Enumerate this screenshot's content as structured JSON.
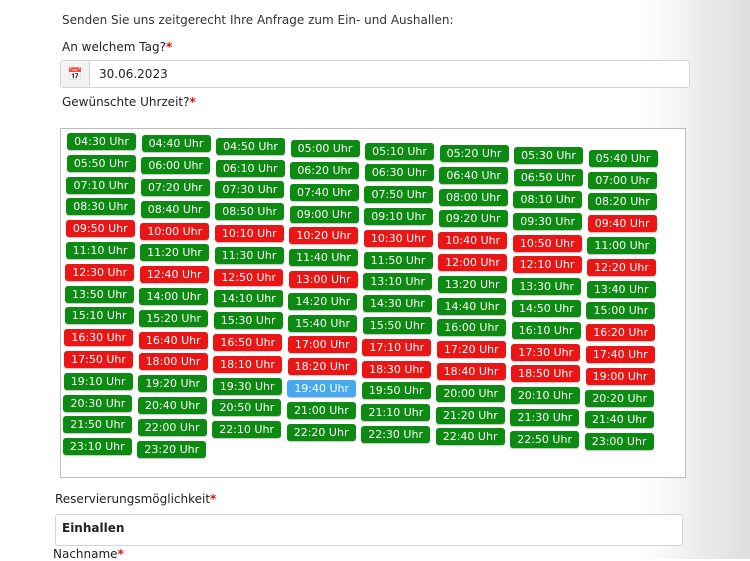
{
  "intro": "Senden Sie uns zeitgerecht Ihre Anfrage zum Ein- und Aushallen:",
  "day": {
    "label": "An welchem Tag?",
    "required": "*",
    "value": "30.06.2023"
  },
  "time": {
    "label": "Gewünschte Uhrzeit?",
    "required": "*"
  },
  "slots": [
    {
      "t": "04:30 Uhr",
      "s": "available"
    },
    {
      "t": "04:40 Uhr",
      "s": "available"
    },
    {
      "t": "04:50 Uhr",
      "s": "available"
    },
    {
      "t": "05:00 Uhr",
      "s": "available"
    },
    {
      "t": "05:10 Uhr",
      "s": "available"
    },
    {
      "t": "05:20 Uhr",
      "s": "available"
    },
    {
      "t": "05:30 Uhr",
      "s": "available"
    },
    {
      "t": "05:40 Uhr",
      "s": "available"
    },
    {
      "t": "05:50 Uhr",
      "s": "available"
    },
    {
      "t": "06:00 Uhr",
      "s": "available"
    },
    {
      "t": "06:10 Uhr",
      "s": "available"
    },
    {
      "t": "06:20 Uhr",
      "s": "available"
    },
    {
      "t": "06:30 Uhr",
      "s": "available"
    },
    {
      "t": "06:40 Uhr",
      "s": "available"
    },
    {
      "t": "06:50 Uhr",
      "s": "available"
    },
    {
      "t": "07:00 Uhr",
      "s": "available"
    },
    {
      "t": "07:10 Uhr",
      "s": "available"
    },
    {
      "t": "07:20 Uhr",
      "s": "available"
    },
    {
      "t": "07:30 Uhr",
      "s": "available"
    },
    {
      "t": "07:40 Uhr",
      "s": "available"
    },
    {
      "t": "07:50 Uhr",
      "s": "available"
    },
    {
      "t": "08:00 Uhr",
      "s": "available"
    },
    {
      "t": "08:10 Uhr",
      "s": "available"
    },
    {
      "t": "08:20 Uhr",
      "s": "available"
    },
    {
      "t": "08:30 Uhr",
      "s": "available"
    },
    {
      "t": "08:40 Uhr",
      "s": "available"
    },
    {
      "t": "08:50 Uhr",
      "s": "available"
    },
    {
      "t": "09:00 Uhr",
      "s": "available"
    },
    {
      "t": "09:10 Uhr",
      "s": "available"
    },
    {
      "t": "09:20 Uhr",
      "s": "available"
    },
    {
      "t": "09:30 Uhr",
      "s": "available"
    },
    {
      "t": "09:40 Uhr",
      "s": "booked"
    },
    {
      "t": "09:50 Uhr",
      "s": "booked"
    },
    {
      "t": "10:00 Uhr",
      "s": "booked"
    },
    {
      "t": "10:10 Uhr",
      "s": "booked"
    },
    {
      "t": "10:20 Uhr",
      "s": "booked"
    },
    {
      "t": "10:30 Uhr",
      "s": "booked"
    },
    {
      "t": "10:40 Uhr",
      "s": "booked"
    },
    {
      "t": "10:50 Uhr",
      "s": "booked"
    },
    {
      "t": "11:00 Uhr",
      "s": "available"
    },
    {
      "t": "11:10 Uhr",
      "s": "available"
    },
    {
      "t": "11:20 Uhr",
      "s": "available"
    },
    {
      "t": "11:30 Uhr",
      "s": "available"
    },
    {
      "t": "11:40 Uhr",
      "s": "available"
    },
    {
      "t": "11:50 Uhr",
      "s": "available"
    },
    {
      "t": "12:00 Uhr",
      "s": "booked"
    },
    {
      "t": "12:10 Uhr",
      "s": "booked"
    },
    {
      "t": "12:20 Uhr",
      "s": "booked"
    },
    {
      "t": "12:30 Uhr",
      "s": "booked"
    },
    {
      "t": "12:40 Uhr",
      "s": "booked"
    },
    {
      "t": "12:50 Uhr",
      "s": "booked"
    },
    {
      "t": "13:00 Uhr",
      "s": "booked"
    },
    {
      "t": "13:10 Uhr",
      "s": "available"
    },
    {
      "t": "13:20 Uhr",
      "s": "available"
    },
    {
      "t": "13:30 Uhr",
      "s": "available"
    },
    {
      "t": "13:40 Uhr",
      "s": "available"
    },
    {
      "t": "13:50 Uhr",
      "s": "available"
    },
    {
      "t": "14:00 Uhr",
      "s": "available"
    },
    {
      "t": "14:10 Uhr",
      "s": "available"
    },
    {
      "t": "14:20 Uhr",
      "s": "available"
    },
    {
      "t": "14:30 Uhr",
      "s": "available"
    },
    {
      "t": "14:40 Uhr",
      "s": "available"
    },
    {
      "t": "14:50 Uhr",
      "s": "available"
    },
    {
      "t": "15:00 Uhr",
      "s": "available"
    },
    {
      "t": "15:10 Uhr",
      "s": "available"
    },
    {
      "t": "15:20 Uhr",
      "s": "available"
    },
    {
      "t": "15:30 Uhr",
      "s": "available"
    },
    {
      "t": "15:40 Uhr",
      "s": "available"
    },
    {
      "t": "15:50 Uhr",
      "s": "available"
    },
    {
      "t": "16:00 Uhr",
      "s": "available"
    },
    {
      "t": "16:10 Uhr",
      "s": "available"
    },
    {
      "t": "16:20 Uhr",
      "s": "booked"
    },
    {
      "t": "16:30 Uhr",
      "s": "booked"
    },
    {
      "t": "16:40 Uhr",
      "s": "booked"
    },
    {
      "t": "16:50 Uhr",
      "s": "booked"
    },
    {
      "t": "17:00 Uhr",
      "s": "booked"
    },
    {
      "t": "17:10 Uhr",
      "s": "booked"
    },
    {
      "t": "17:20 Uhr",
      "s": "booked"
    },
    {
      "t": "17:30 Uhr",
      "s": "booked"
    },
    {
      "t": "17:40 Uhr",
      "s": "booked"
    },
    {
      "t": "17:50 Uhr",
      "s": "booked"
    },
    {
      "t": "18:00 Uhr",
      "s": "booked"
    },
    {
      "t": "18:10 Uhr",
      "s": "booked"
    },
    {
      "t": "18:20 Uhr",
      "s": "booked"
    },
    {
      "t": "18:30 Uhr",
      "s": "booked"
    },
    {
      "t": "18:40 Uhr",
      "s": "booked"
    },
    {
      "t": "18:50 Uhr",
      "s": "booked"
    },
    {
      "t": "19:00 Uhr",
      "s": "booked"
    },
    {
      "t": "19:10 Uhr",
      "s": "available"
    },
    {
      "t": "19:20 Uhr",
      "s": "available"
    },
    {
      "t": "19:30 Uhr",
      "s": "available"
    },
    {
      "t": "19:40 Uhr",
      "s": "selected"
    },
    {
      "t": "19:50 Uhr",
      "s": "available"
    },
    {
      "t": "20:00 Uhr",
      "s": "available"
    },
    {
      "t": "20:10 Uhr",
      "s": "available"
    },
    {
      "t": "20:20 Uhr",
      "s": "available"
    },
    {
      "t": "20:30 Uhr",
      "s": "available"
    },
    {
      "t": "20:40 Uhr",
      "s": "available"
    },
    {
      "t": "20:50 Uhr",
      "s": "available"
    },
    {
      "t": "21:00 Uhr",
      "s": "available"
    },
    {
      "t": "21:10 Uhr",
      "s": "available"
    },
    {
      "t": "21:20 Uhr",
      "s": "available"
    },
    {
      "t": "21:30 Uhr",
      "s": "available"
    },
    {
      "t": "21:40 Uhr",
      "s": "available"
    },
    {
      "t": "21:50 Uhr",
      "s": "available"
    },
    {
      "t": "22:00 Uhr",
      "s": "available"
    },
    {
      "t": "22:10 Uhr",
      "s": "available"
    },
    {
      "t": "22:20 Uhr",
      "s": "available"
    },
    {
      "t": "22:30 Uhr",
      "s": "available"
    },
    {
      "t": "22:40 Uhr",
      "s": "available"
    },
    {
      "t": "22:50 Uhr",
      "s": "available"
    },
    {
      "t": "23:00 Uhr",
      "s": "available"
    },
    {
      "t": "23:10 Uhr",
      "s": "available"
    },
    {
      "t": "23:20 Uhr",
      "s": "available"
    }
  ],
  "reservation": {
    "label": "Reservierungsmöglichkeit",
    "required": "*",
    "value": "Einhallen"
  },
  "lastname": {
    "label": "Nachname",
    "required": "*"
  },
  "colors": {
    "available": "#0d8a12",
    "booked": "#ea1515",
    "selected": "#46a8ef"
  },
  "icons": {
    "date": "calendar-icon"
  }
}
